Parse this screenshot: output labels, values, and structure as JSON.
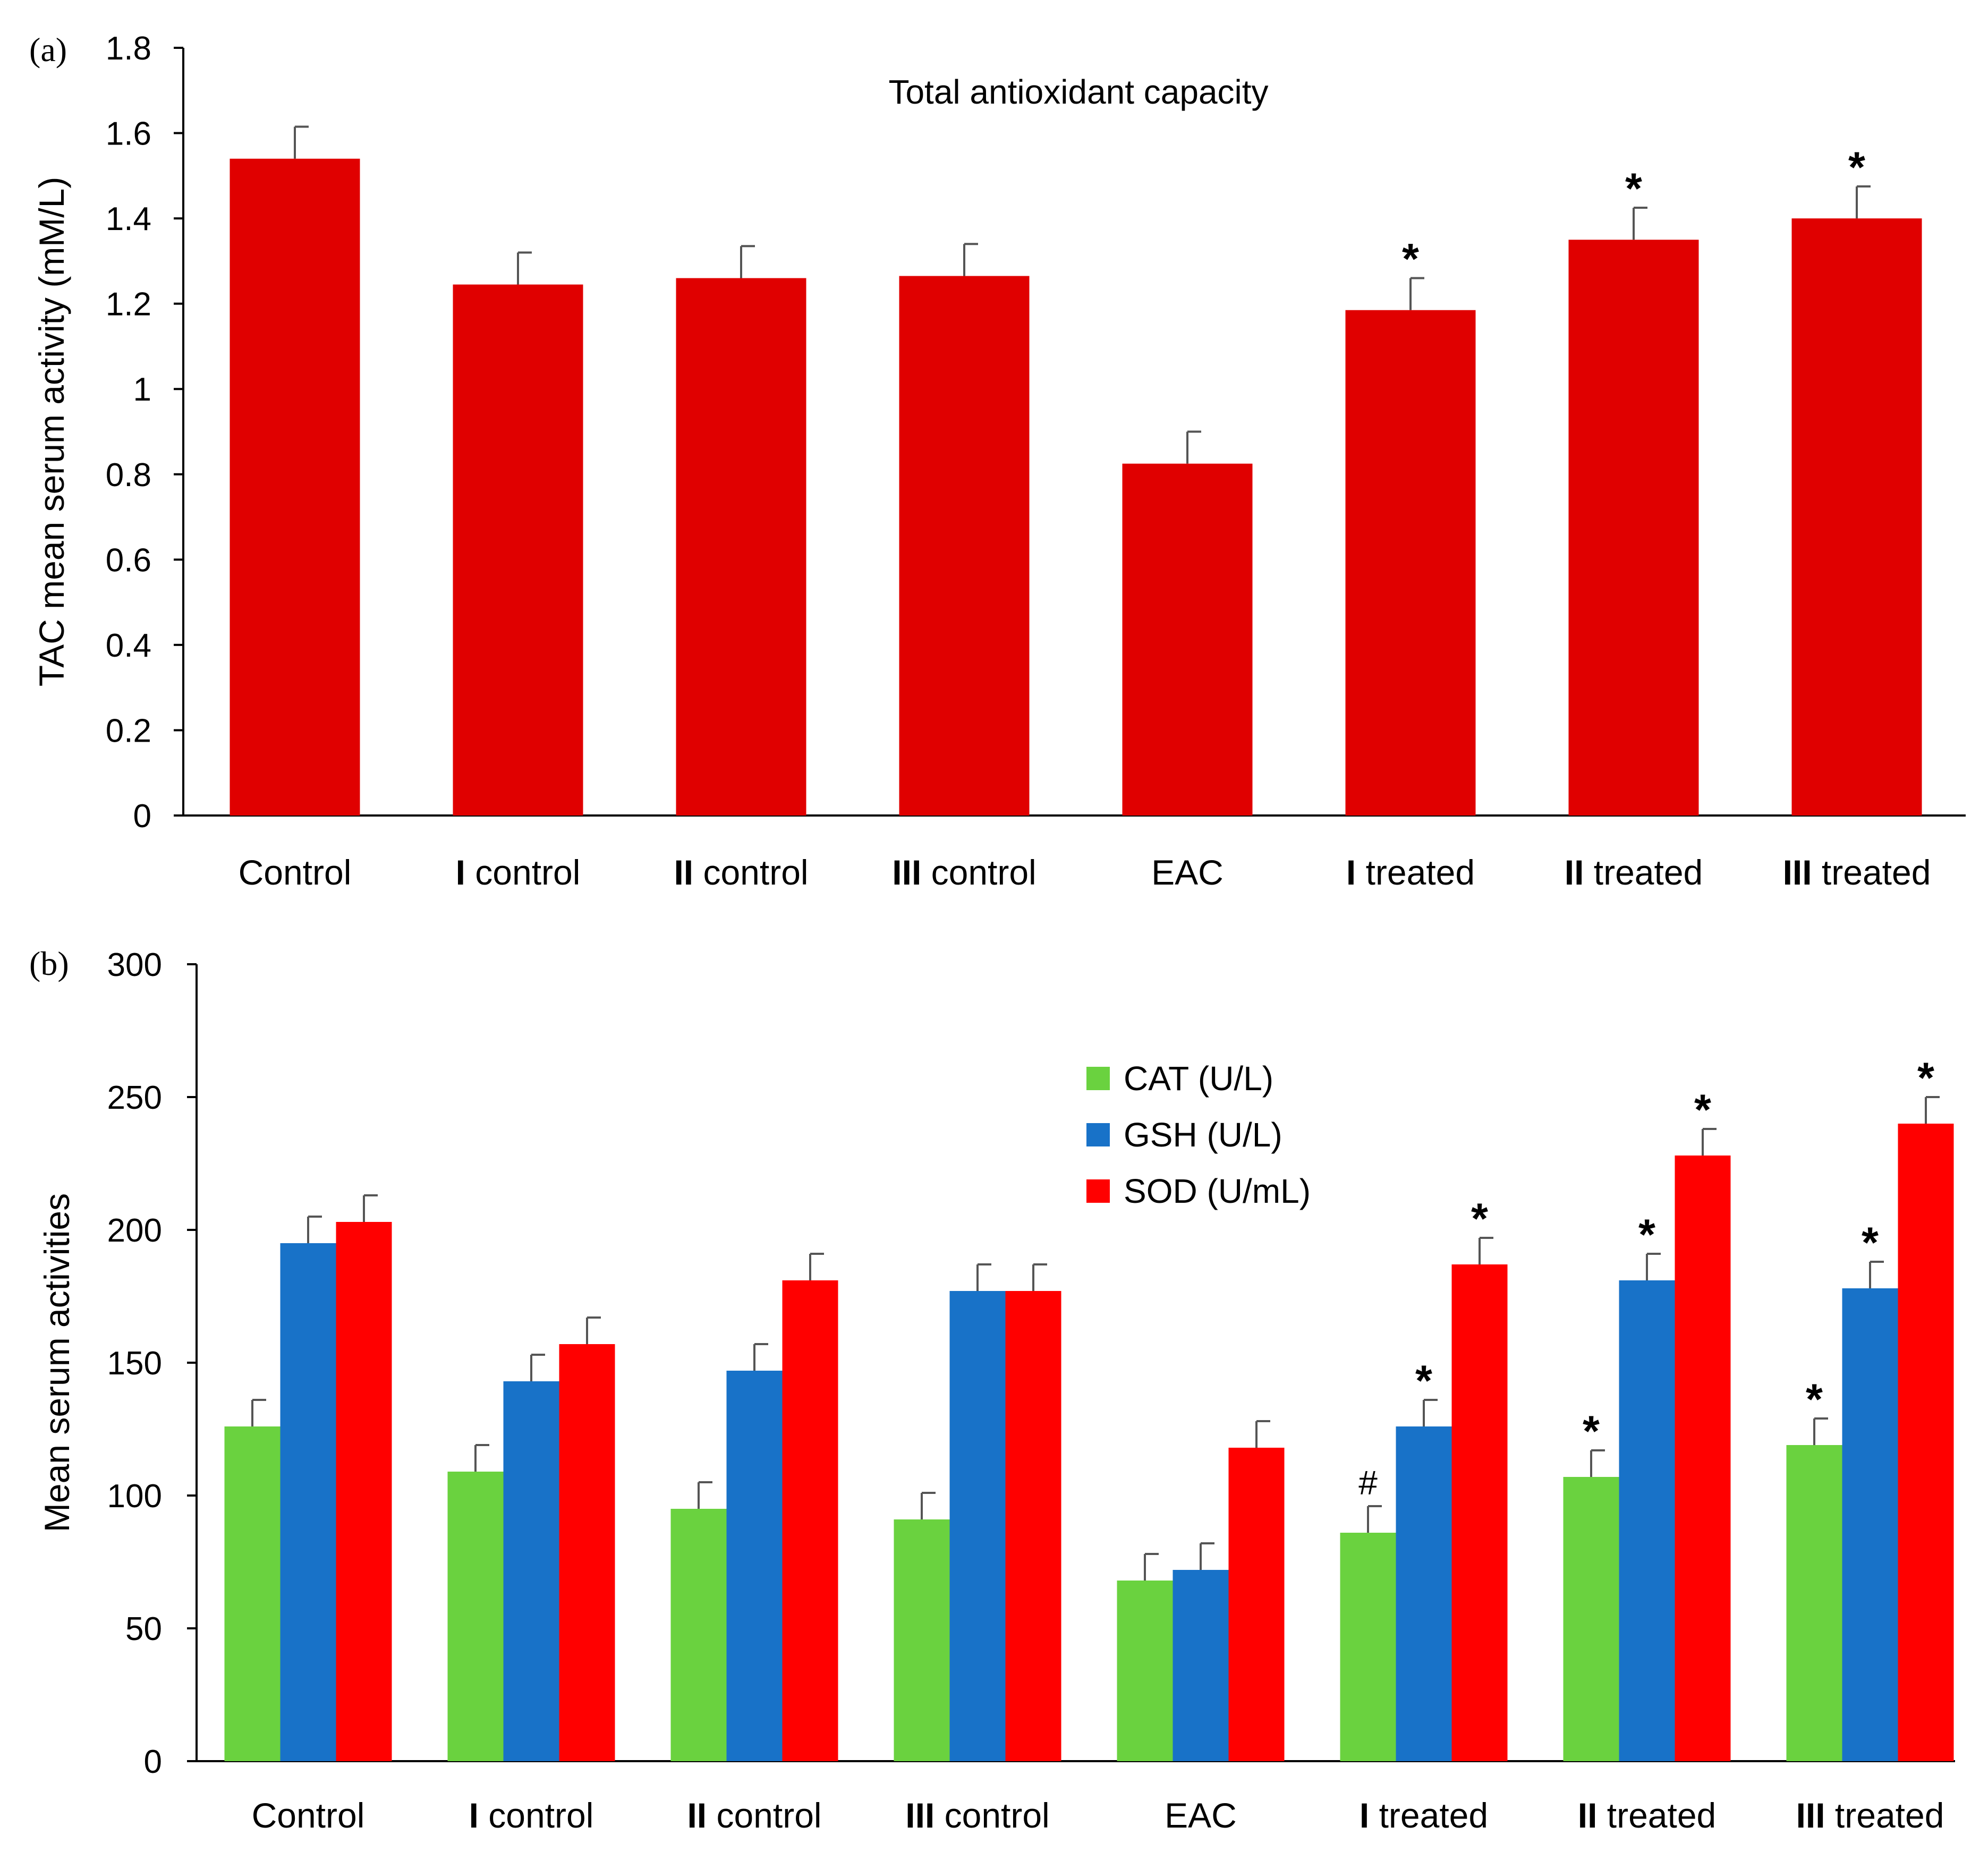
{
  "chart_data": [
    {
      "panel_label": "(a)",
      "type": "bar",
      "title": "Total antioxidant capacity",
      "xlabel": "",
      "ylabel": "TAC mean serum activity (mM/L)",
      "ylim": [
        0,
        1.8
      ],
      "yticks": [
        {
          "value": 0,
          "label": "0"
        },
        {
          "value": 0.2,
          "label": "0.2"
        },
        {
          "value": 0.4,
          "label": "0.4"
        },
        {
          "value": 0.6,
          "label": "0.6"
        },
        {
          "value": 0.8,
          "label": "0.8"
        },
        {
          "value": 1.0,
          "label": "1"
        },
        {
          "value": 1.2,
          "label": "1.2"
        },
        {
          "value": 1.4,
          "label": "1.4"
        },
        {
          "value": 1.6,
          "label": "1.6"
        },
        {
          "value": 1.8,
          "label": "1.8"
        }
      ],
      "categories": [
        {
          "roman": "",
          "rest": "Control"
        },
        {
          "roman": "I",
          "rest": " control"
        },
        {
          "roman": "II",
          "rest": " control"
        },
        {
          "roman": "III",
          "rest": " control"
        },
        {
          "roman": "",
          "rest": "EAC"
        },
        {
          "roman": "I",
          "rest": " treated"
        },
        {
          "roman": "II",
          "rest": " treated"
        },
        {
          "roman": "III",
          "rest": " treated"
        }
      ],
      "grid": false,
      "series": [
        {
          "name": "TAC",
          "color": "#e00000",
          "values": [
            1.54,
            1.245,
            1.26,
            1.265,
            0.825,
            1.185,
            1.35,
            1.4
          ],
          "errors": [
            0.075,
            0.075,
            0.075,
            0.075,
            0.075,
            0.075,
            0.075,
            0.075
          ],
          "marks": [
            "",
            "",
            "",
            "",
            "",
            "*",
            "*",
            "*"
          ]
        }
      ]
    },
    {
      "panel_label": "(b)",
      "type": "bar",
      "title": "",
      "xlabel": "",
      "ylabel": "Mean serum activities",
      "ylim": [
        0,
        300
      ],
      "yticks": [
        {
          "value": 0,
          "label": "0"
        },
        {
          "value": 50,
          "label": "50"
        },
        {
          "value": 100,
          "label": "100"
        },
        {
          "value": 150,
          "label": "150"
        },
        {
          "value": 200,
          "label": "200"
        },
        {
          "value": 250,
          "label": "250"
        },
        {
          "value": 300,
          "label": "300"
        }
      ],
      "categories": [
        {
          "roman": "",
          "rest": "Control"
        },
        {
          "roman": "I",
          "rest": " control"
        },
        {
          "roman": "II",
          "rest": " control"
        },
        {
          "roman": "III",
          "rest": " control"
        },
        {
          "roman": "",
          "rest": "EAC"
        },
        {
          "roman": "I",
          "rest": " treated"
        },
        {
          "roman": "II",
          "rest": " treated"
        },
        {
          "roman": "III",
          "rest": " treated"
        }
      ],
      "grid": false,
      "legend_position": "top-center",
      "series": [
        {
          "name": "CAT (U/L)",
          "color": "#6ad23f",
          "values": [
            126,
            109,
            95,
            91,
            68,
            86,
            107,
            119
          ],
          "errors": [
            10,
            10,
            10,
            10,
            10,
            10,
            10,
            10
          ],
          "marks": [
            "",
            "",
            "",
            "",
            "",
            "#",
            "*",
            "*"
          ]
        },
        {
          "name": "GSH (U/L)",
          "color": "#1872c8",
          "values": [
            195,
            143,
            147,
            177,
            72,
            126,
            181,
            178
          ],
          "errors": [
            10,
            10,
            10,
            10,
            10,
            10,
            10,
            10
          ],
          "marks": [
            "",
            "",
            "",
            "",
            "",
            "*",
            "*",
            "*"
          ]
        },
        {
          "name": "SOD (U/mL)",
          "color": "#ff0000",
          "values": [
            203,
            157,
            181,
            177,
            118,
            187,
            228,
            240
          ],
          "errors": [
            10,
            10,
            10,
            10,
            10,
            10,
            10,
            10
          ],
          "marks": [
            "",
            "",
            "",
            "",
            "",
            "*",
            "*",
            "*"
          ]
        }
      ]
    }
  ]
}
